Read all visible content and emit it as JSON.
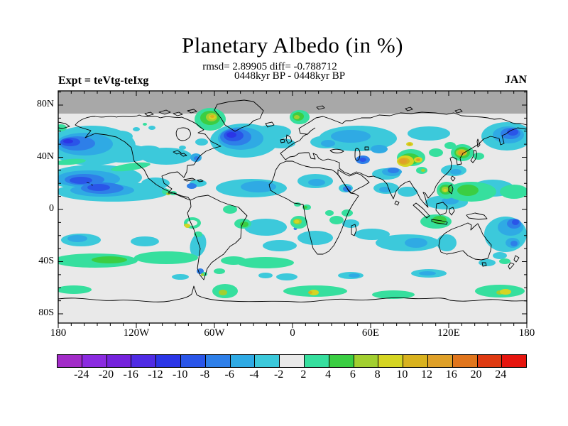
{
  "chart_data": {
    "type": "heatmap",
    "title": "Planetary Albedo (in %)",
    "stats_line": "rmsd= 2.89905 diff= -0.788712",
    "rmsd": 2.89905,
    "diff": -0.788712,
    "period_line": "0448kyr BP - 0448kyr BP",
    "experiment_label": "Expt = teVtg-teIxg",
    "month": "JAN",
    "projection": "equirectangular world map, longitude 180W-180E, latitude 90N-90S",
    "background_color": "#E9E9E9",
    "no_data_band": {
      "description": "uniform gray band across the top of the map (polar night / no data) north of about 72N",
      "color": "#A8A8A8"
    },
    "axes": {
      "x": {
        "ticks": [
          {
            "label": "180",
            "lon": -180
          },
          {
            "label": "120W",
            "lon": -120
          },
          {
            "label": "60W",
            "lon": -60
          },
          {
            "label": "0",
            "lon": 0
          },
          {
            "label": "60E",
            "lon": 60
          },
          {
            "label": "120E",
            "lon": 120
          },
          {
            "label": "180",
            "lon": 180
          }
        ],
        "major_step": 60,
        "minor_step": 10
      },
      "y": {
        "ticks": [
          {
            "label": "80N",
            "lat": 80
          },
          {
            "label": "40N",
            "lat": 40
          },
          {
            "label": "0",
            "lat": 0
          },
          {
            "label": "40S",
            "lat": -40
          },
          {
            "label": "80S",
            "lat": -80
          }
        ],
        "major_step": 40,
        "minor_step": 10
      }
    },
    "colorbar": {
      "boundary_labels": [
        "-24",
        "-20",
        "-16",
        "-12",
        "-10",
        "-8",
        "-6",
        "-4",
        "-2",
        "2",
        "4",
        "6",
        "8",
        "10",
        "12",
        "16",
        "20",
        "24"
      ],
      "segment_colors": [
        "#A22CC8",
        "#8B2BE0",
        "#7523DC",
        "#4F2BE4",
        "#2B35E6",
        "#2A55E8",
        "#2E7FE8",
        "#2FAAE4",
        "#3CC9DB",
        "#E9E9E9",
        "#36DF9E",
        "#3BCE43",
        "#A2CF30",
        "#D5D523",
        "#D9B21E",
        "#DFA028",
        "#E0751C",
        "#DF3A12",
        "#E6150E"
      ],
      "outline_color": "#000000"
    },
    "notable_anomalies": [
      {
        "region": "North Pacific",
        "sign": "negative",
        "approx_range_percent": "-10 to -2"
      },
      {
        "region": "North Atlantic southeast of Greenland",
        "sign": "negative",
        "approx_range_percent": "-12 to -2"
      },
      {
        "region": "Southeast Greenland coast",
        "sign": "positive",
        "approx_range_percent": "+2 to +12"
      },
      {
        "region": "Norwegian coast",
        "sign": "positive",
        "approx_range_percent": "+2 to +8"
      },
      {
        "region": "Equatorial / subtropical Pacific bands",
        "sign": "negative",
        "approx_range_percent": "-10 to -2"
      },
      {
        "region": "Siberia",
        "sign": "negative",
        "approx_range_percent": "-8 to -2"
      },
      {
        "region": "Central Asia spots",
        "sign": "positive",
        "approx_range_percent": "+8 to +16"
      },
      {
        "region": "Korea / Sea of Japan",
        "sign": "positive",
        "approx_range_percent": "+6 to +16"
      },
      {
        "region": "Northwest Pacific east of Kamchatka",
        "sign": "negative",
        "approx_range_percent": "-10 to -2"
      },
      {
        "region": "Philippine Sea / western Pacific warm pool",
        "sign": "positive",
        "approx_range_percent": "+2 to +10"
      },
      {
        "region": "Coral Sea east of Australia",
        "sign": "negative",
        "approx_range_percent": "-10 to -2"
      },
      {
        "region": "Namibian coast",
        "sign": "positive",
        "approx_range_percent": "+2 to +10"
      },
      {
        "region": "Peru coast",
        "sign": "positive",
        "approx_range_percent": "+2 to +10"
      },
      {
        "region": "Southern Ocean band near 50S",
        "sign": "positive",
        "approx_range_percent": "+2 to +6"
      },
      {
        "region": "Antarctic coastal band",
        "sign": "positive",
        "approx_range_percent": "+2 to +10"
      }
    ]
  }
}
